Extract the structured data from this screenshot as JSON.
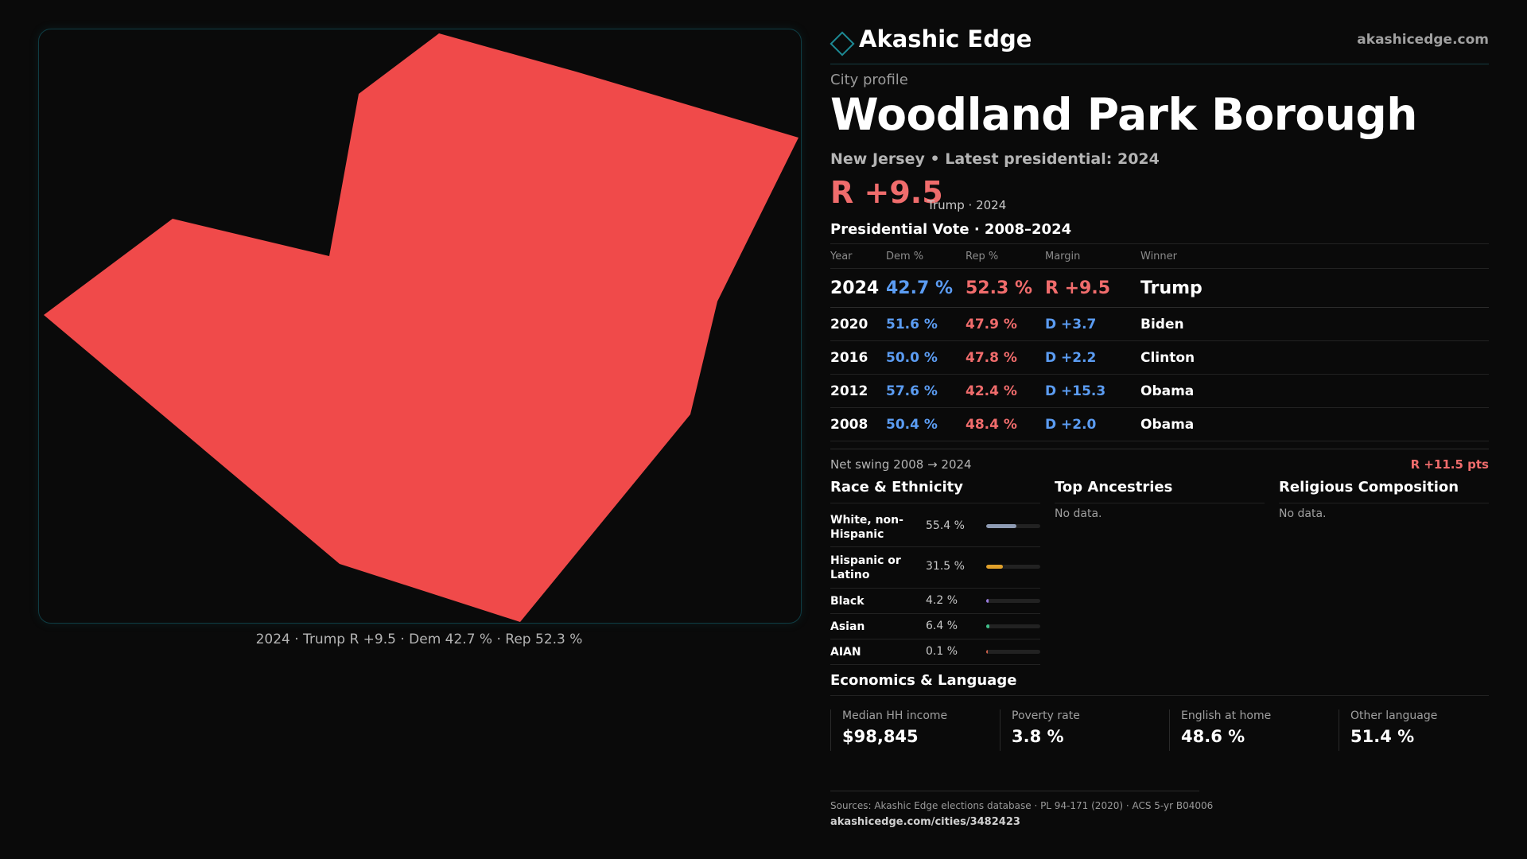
{
  "map": {
    "fill_color": "#f04a4a",
    "caption": "2024 · Trump R +9.5 · Dem 42.7 % · Rep 52.3 %"
  },
  "brand": {
    "name": "Akashic Edge",
    "url": "akashicedge.com",
    "accent": "#1d8a95"
  },
  "header": {
    "kicker": "City profile",
    "title": "Woodland Park Borough",
    "subtitle": "New Jersey • Latest presidential: 2024",
    "margin": "R +9.5",
    "margin_note": "Trump · 2024"
  },
  "votes": {
    "title": "Presidential Vote · 2008–2024",
    "columns": [
      "Year",
      "Dem %",
      "Rep %",
      "Margin",
      "Winner"
    ],
    "rows": [
      {
        "year": "2024",
        "dem": "42.7 %",
        "rep": "52.3 %",
        "margin": "R +9.5",
        "margin_party": "rep",
        "winner": "Trump"
      },
      {
        "year": "2020",
        "dem": "51.6 %",
        "rep": "47.9 %",
        "margin": "D +3.7",
        "margin_party": "dem",
        "winner": "Biden"
      },
      {
        "year": "2016",
        "dem": "50.0 %",
        "rep": "47.8 %",
        "margin": "D +2.2",
        "margin_party": "dem",
        "winner": "Clinton"
      },
      {
        "year": "2012",
        "dem": "57.6 %",
        "rep": "42.4 %",
        "margin": "D +15.3",
        "margin_party": "dem",
        "winner": "Obama"
      },
      {
        "year": "2008",
        "dem": "50.4 %",
        "rep": "48.4 %",
        "margin": "D +2.0",
        "margin_party": "dem",
        "winner": "Obama"
      }
    ],
    "swing_label": "Net swing 2008 → 2024",
    "swing_value": "R +11.5 pts"
  },
  "race": {
    "title": "Race & Ethnicity",
    "items": [
      {
        "label": "White, non-Hispanic",
        "pct_text": "55.4 %",
        "value": 55.4,
        "color": "#8e9bb3"
      },
      {
        "label": "Hispanic or Latino",
        "pct_text": "31.5 %",
        "value": 31.5,
        "color": "#e0a02a"
      },
      {
        "label": "Black",
        "pct_text": "4.2 %",
        "value": 4.2,
        "color": "#9b7de0"
      },
      {
        "label": "Asian",
        "pct_text": "6.4 %",
        "value": 6.4,
        "color": "#3fbf8a"
      },
      {
        "label": "AIAN",
        "pct_text": "0.1 %",
        "value": 0.1,
        "color": "#d0604a"
      }
    ]
  },
  "ancestries": {
    "title": "Top Ancestries",
    "empty": "No data."
  },
  "religion": {
    "title": "Religious Composition",
    "empty": "No data."
  },
  "economics": {
    "title": "Economics & Language",
    "stats": [
      {
        "label": "Median HH income",
        "value": "$98,845"
      },
      {
        "label": "Poverty rate",
        "value": "3.8 %"
      },
      {
        "label": "English at home",
        "value": "48.6 %"
      },
      {
        "label": "Other language",
        "value": "51.4 %"
      }
    ]
  },
  "footer": {
    "sources": "Sources: Akashic Edge elections database · PL 94-171 (2020) · ACS 5-yr B04006",
    "url": "akashicedge.com/cities/3482423"
  }
}
